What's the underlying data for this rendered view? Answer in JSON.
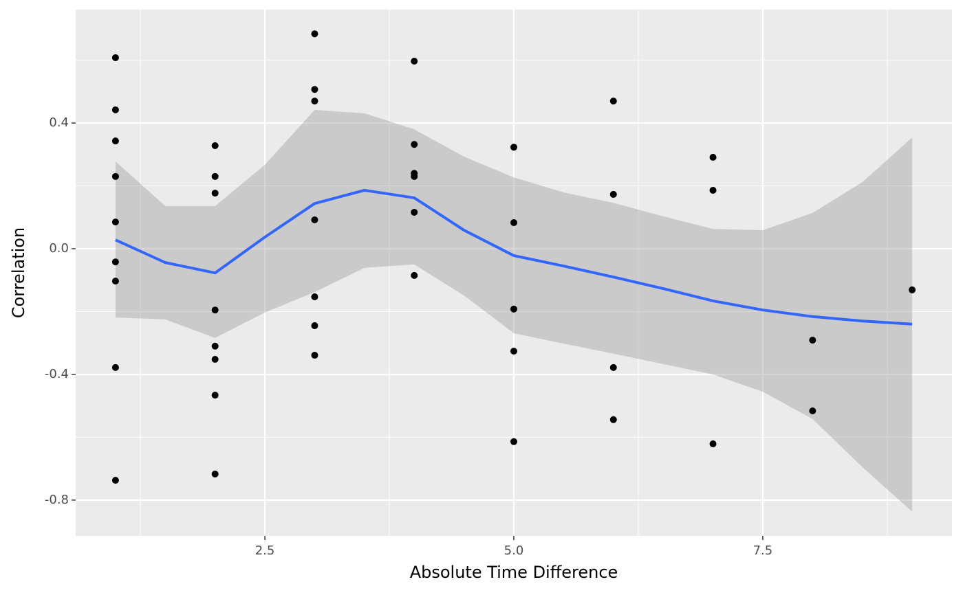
{
  "chart_data": {
    "type": "scatter",
    "x_label": "Absolute Time Difference",
    "y_label": "Correlation",
    "xlim": [
      0.6,
      9.4
    ],
    "ylim": [
      -0.914,
      0.761
    ],
    "xticks": [
      2.5,
      {
        "value": 5,
        "label": "5.0"
      },
      7.5
    ],
    "yticks": [
      -0.8,
      -0.4,
      {
        "value": 0,
        "label": "0.0"
      },
      0.4
    ],
    "minor_xticks": [
      1.25,
      3.75,
      6.25,
      8.75
    ],
    "minor_yticks": [
      -0.6,
      -0.2,
      0.2,
      0.6
    ],
    "grid": true,
    "points": {
      "color": "#000000",
      "x": [
        1,
        1,
        1,
        1,
        1,
        1,
        1,
        1,
        1,
        2,
        2,
        2,
        2,
        2,
        2,
        2,
        2,
        3,
        3,
        3,
        3,
        3,
        3,
        3,
        4,
        4,
        4,
        4,
        4,
        4,
        5,
        5,
        5,
        5,
        5,
        6,
        6,
        6,
        6,
        7,
        7,
        7,
        8,
        8,
        9
      ],
      "values": [
        0.608,
        0.442,
        0.343,
        0.23,
        0.085,
        -0.042,
        -0.103,
        -0.378,
        -0.737,
        0.328,
        0.23,
        0.177,
        -0.195,
        -0.31,
        -0.352,
        -0.466,
        -0.717,
        0.684,
        0.507,
        0.47,
        0.092,
        -0.153,
        -0.245,
        -0.339,
        0.597,
        0.332,
        0.24,
        0.23,
        0.116,
        -0.085,
        0.323,
        0.083,
        -0.192,
        -0.326,
        -0.614,
        0.47,
        0.173,
        -0.378,
        -0.544,
        0.291,
        0.186,
        -0.621,
        -0.291,
        -0.516,
        -0.131
      ]
    },
    "smooth": {
      "color": "#3366ff",
      "band_color": "#999999",
      "x": [
        1,
        1.5,
        2,
        2.5,
        3,
        3.5,
        4,
        4.5,
        5,
        5.5,
        6,
        6.5,
        7,
        7.5,
        8,
        8.5,
        9
      ],
      "values": [
        0.028,
        -0.044,
        -0.077,
        0.037,
        0.144,
        0.186,
        0.162,
        0.059,
        -0.022,
        -0.055,
        -0.09,
        -0.127,
        -0.166,
        -0.195,
        -0.216,
        -0.23,
        -0.24
      ],
      "lower": [
        -0.219,
        -0.225,
        -0.284,
        -0.203,
        -0.138,
        -0.061,
        -0.05,
        -0.149,
        -0.269,
        -0.302,
        -0.334,
        -0.367,
        -0.4,
        -0.455,
        -0.542,
        -0.695,
        -0.837
      ],
      "upper": [
        0.278,
        0.136,
        0.136,
        0.267,
        0.442,
        0.431,
        0.38,
        0.293,
        0.227,
        0.179,
        0.146,
        0.103,
        0.063,
        0.059,
        0.114,
        0.212,
        0.354
      ]
    }
  }
}
